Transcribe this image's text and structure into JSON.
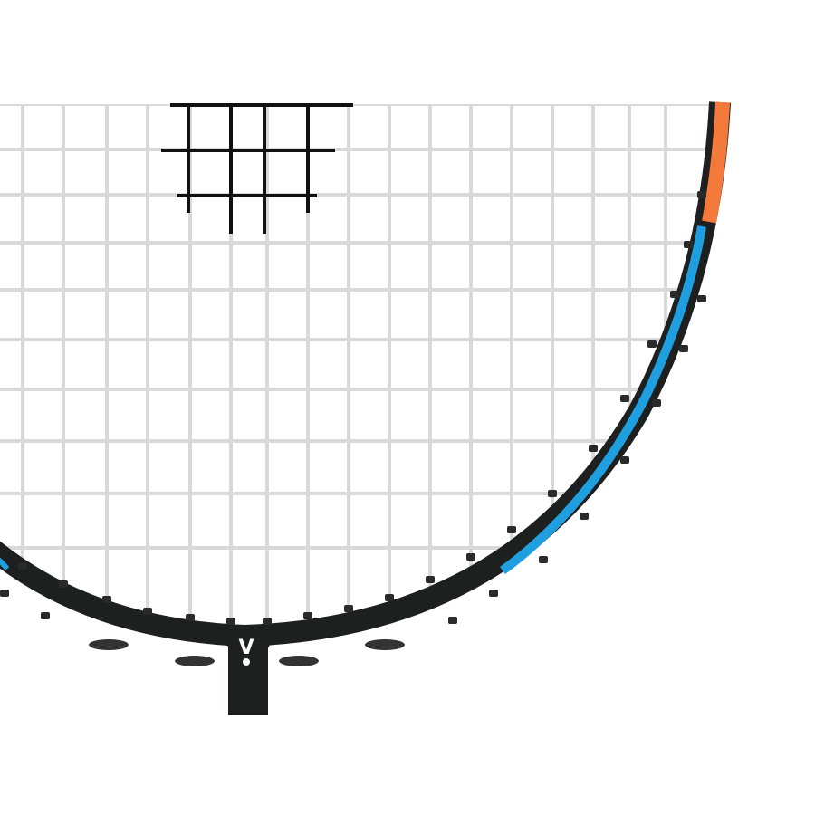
{
  "logo": {
    "text": "V"
  },
  "colors": {
    "background": "#ffffff",
    "frame": "#1e1f1f",
    "strings": "#d9d9d9",
    "stencil": "#111111",
    "accent_blue": "#1f9fe0",
    "accent_orange": "#f47a3c"
  }
}
